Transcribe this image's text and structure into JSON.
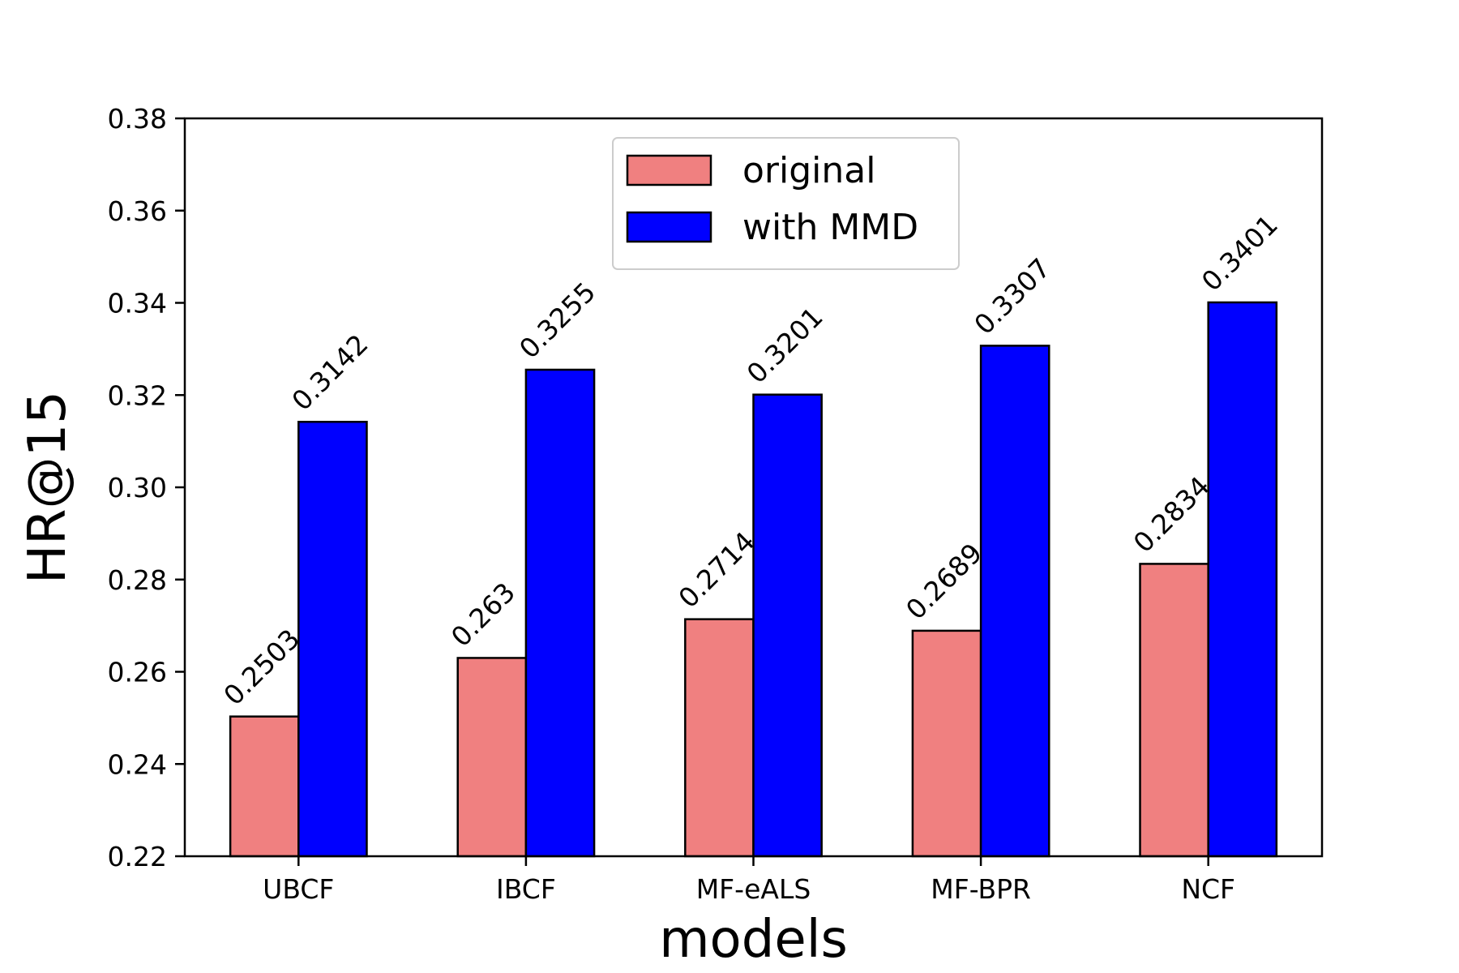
{
  "chart_data": {
    "type": "bar",
    "xlabel": "models",
    "ylabel": "HR@15",
    "ylim": [
      0.22,
      0.38
    ],
    "yticks": [
      "0.22",
      "0.24",
      "0.26",
      "0.28",
      "0.30",
      "0.32",
      "0.34",
      "0.36",
      "0.38"
    ],
    "categories": [
      "UBCF",
      "IBCF",
      "MF-eALS",
      "MF-BPR",
      "NCF"
    ],
    "series": [
      {
        "name": "original",
        "color": "#f08080",
        "values": [
          0.2503,
          0.263,
          0.2714,
          0.2689,
          0.2834
        ],
        "labels": [
          "0.2503",
          "0.263",
          "0.2714",
          "0.2689",
          "0.2834"
        ]
      },
      {
        "name": "with MMD",
        "color": "#0000ff",
        "values": [
          0.3142,
          0.3255,
          0.3201,
          0.3307,
          0.3401
        ],
        "labels": [
          "0.3142",
          "0.3255",
          "0.3201",
          "0.3307",
          "0.3401"
        ]
      }
    ],
    "grid": false,
    "legend_position": "upper center"
  }
}
